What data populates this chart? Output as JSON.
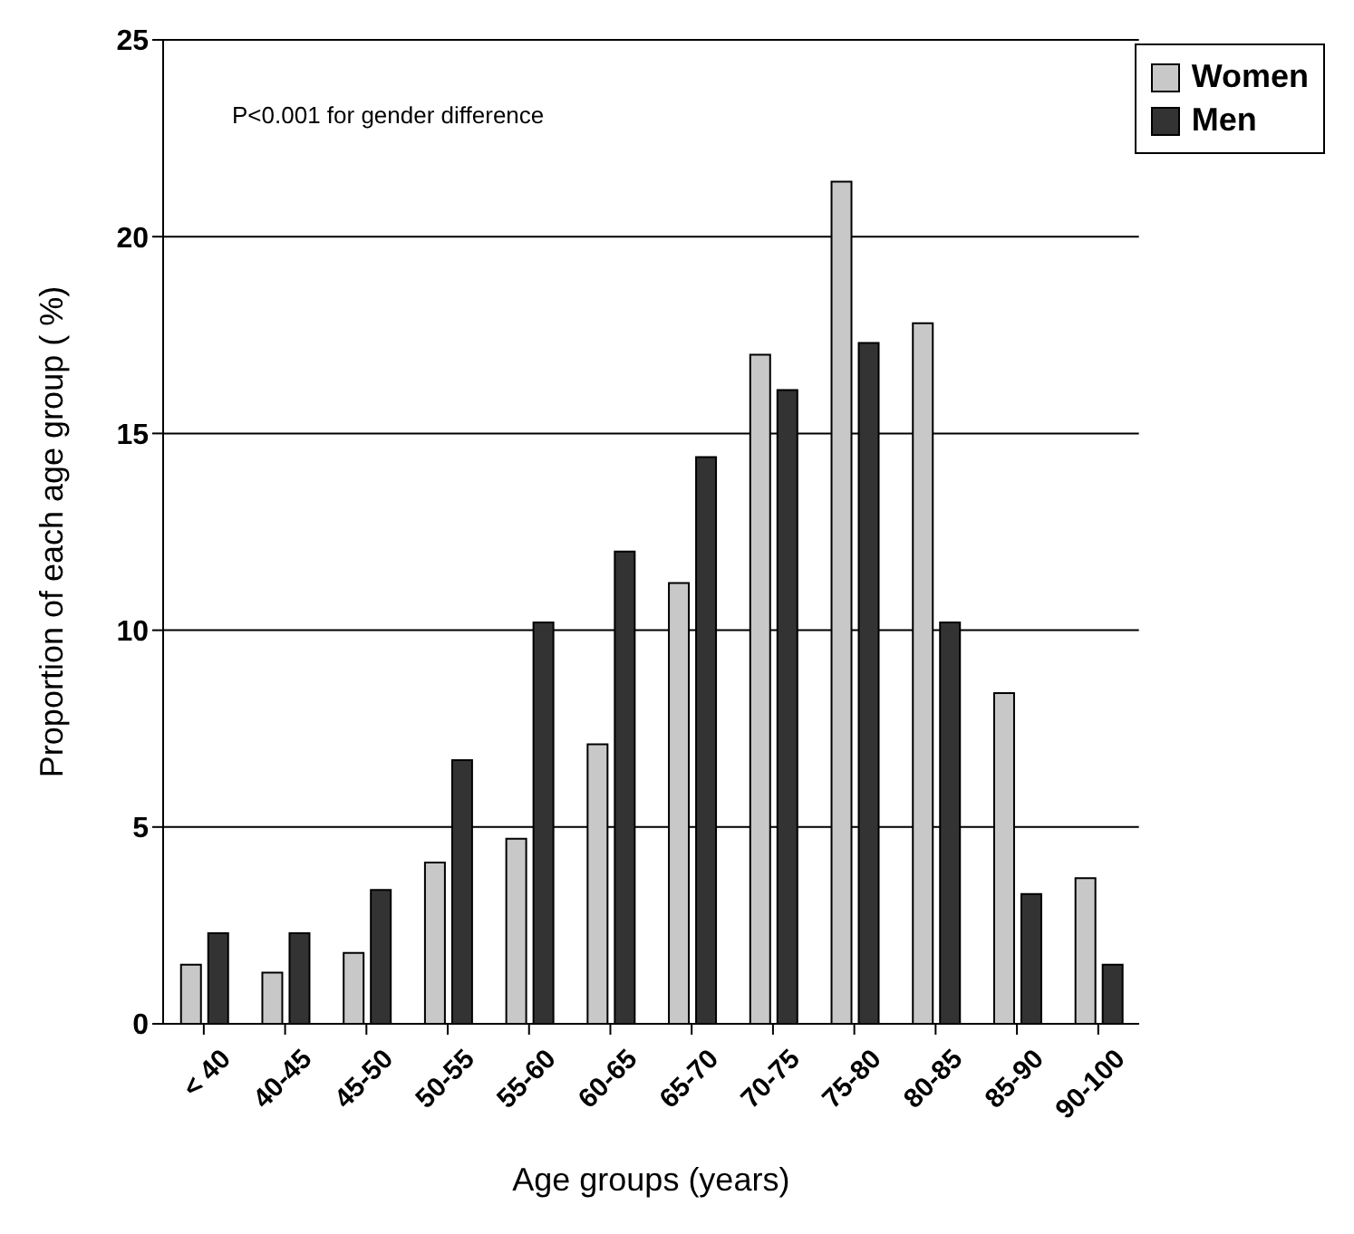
{
  "chart_data": {
    "type": "bar",
    "xlabel": "Age groups (years)",
    "ylabel": "Proportion of each age group ( %)",
    "annotations": [
      "P<0.001 for gender difference"
    ],
    "categories": [
      "< 40",
      "40-45",
      "45-50",
      "50-55",
      "55-60",
      "60-65",
      "65-70",
      "70-75",
      "75-80",
      "80-85",
      "85-90",
      "90-100"
    ],
    "series": [
      {
        "name": "Women",
        "color": "#c8c8c8",
        "values": [
          1.5,
          1.3,
          1.8,
          4.1,
          4.7,
          7.1,
          11.2,
          17.0,
          21.4,
          17.8,
          8.4,
          3.7
        ]
      },
      {
        "name": "Men",
        "color": "#333333",
        "values": [
          2.3,
          2.3,
          3.4,
          6.7,
          10.2,
          12.0,
          14.4,
          16.1,
          17.3,
          10.2,
          3.3,
          1.5
        ]
      }
    ],
    "ylim": [
      0,
      25
    ],
    "yticks": [
      0,
      5,
      10,
      15,
      20,
      25
    ],
    "grid": "y",
    "legend": "top right"
  }
}
